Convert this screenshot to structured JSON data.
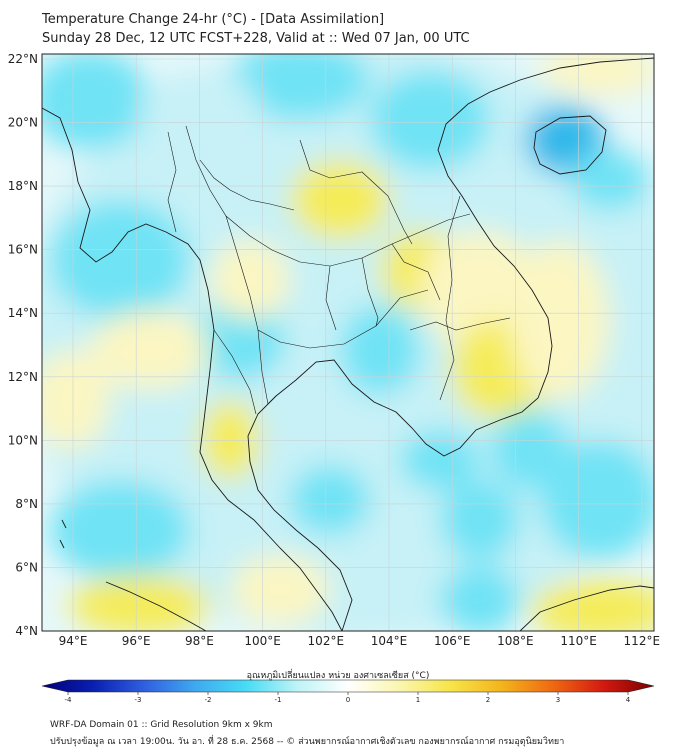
{
  "header": {
    "title_line1": "Temperature Change 24-hr (°C) - [Data Assimilation]",
    "title_line2": "Sunday 28 Dec, 12 UTC FCST+228, Valid at :: Wed 07 Jan, 00 UTC"
  },
  "axes": {
    "lat_labels": [
      "22°N",
      "20°N",
      "18°N",
      "16°N",
      "14°N",
      "12°N",
      "10°N",
      "8°N",
      "6°N",
      "4°N"
    ],
    "lon_labels": [
      "94°E",
      "96°E",
      "98°E",
      "100°E",
      "102°E",
      "104°E",
      "106°E",
      "108°E",
      "110°E",
      "112°E"
    ]
  },
  "colorbar": {
    "title": "อุณหภูมิเปลี่ยนแปลง หน่วย องศาเซลเซียส (°C)",
    "tick_labels": [
      "-4",
      "-3",
      "-2",
      "-1",
      "0",
      "1",
      "2",
      "3",
      "4"
    ],
    "stops": [
      "#00007a",
      "#0a1fb0",
      "#2f5fe0",
      "#3fa8f0",
      "#47dcf5",
      "#bdf3f6",
      "#ffffff",
      "#fbf6b0",
      "#f7e54a",
      "#f4b51c",
      "#ef6a12",
      "#d41a10",
      "#7a0000"
    ]
  },
  "field_colors": {
    "cyan": "#6fe3f5",
    "light_cyan": "#c7f1f7",
    "yellow": "#f5ec5a",
    "pale_yellow": "#fbf6c2",
    "deep_blue": "#2fb8ea"
  },
  "footer": {
    "line1": "WRF-DA Domain 01 :: Grid Resolution 9km x 9km",
    "line2": "ปรับปรุงข้อมูล ณ เวลา 19:00น. วัน อา. ที่ 28 ธ.ค. 2568 -- © ส่วนพยากรณ์อากาศเชิงตัวเลข กองพยากรณ์อากาศ กรมอุตุนิยมวิทยา"
  }
}
